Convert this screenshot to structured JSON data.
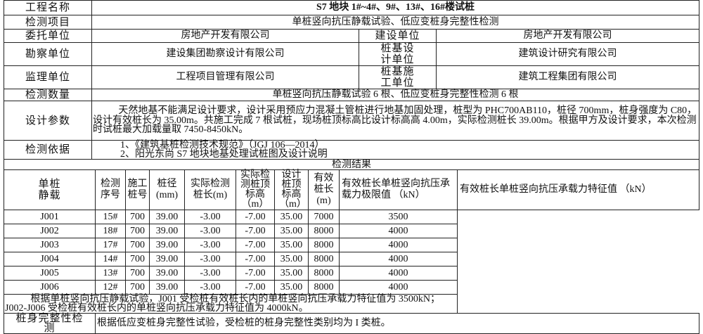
{
  "project": {
    "label": "工程名称",
    "value": "S7 地块 1#~4#、9#、13#、16#楼试桩"
  },
  "test_item": {
    "label": "检测项目",
    "value": "单桩竖向抗压静载试验、低应变桩身完整性检测"
  },
  "client": {
    "label": "委托单位",
    "value": "房地产开发有限公司",
    "label2": "建设单位",
    "value2": "房地产开发有限公司"
  },
  "survey": {
    "label": "勘察单位",
    "value": "建设集团勘察设计有限公司",
    "label2": "桩基设计单位",
    "value2": "建筑设计研究有限公司"
  },
  "supervision": {
    "label": "监理单位",
    "value": "工程项目管理有限公司",
    "label2": "桩基施工单位",
    "value2": "建筑工程集团有限公司"
  },
  "quantity": {
    "label": "检测数量",
    "value": "单桩竖向抗压静载试验 6 根、低应变桩身完整性检测 6 根"
  },
  "design": {
    "label": "设计参数",
    "value": "天然地基不能满足设计要求，设计采用预应力混凝土管桩进行地基加固处理，桩型为 PHC700AB110，桩径 700mm，桩身强度为 C80，设计有效桩长为 35.00m。共施工完成 7 根试桩，现场桩顶标高比设计标高高 4.00m，实际检测桩长 39.00m。根据甲方及设计要求，本次检测时试桩最大加载量取 7450-8450kN。"
  },
  "basis": {
    "label": "检测依据",
    "items": [
      "1、《建筑基桩检测技术规范》（JGJ 106—2014）",
      "2、阳光东尚 S7 地块地基处理试桩图及设计说明"
    ]
  },
  "results": {
    "title": "检测结果",
    "static_label": "单桩静载",
    "headers": [
      "检测序号",
      "施工桩号",
      "桩径(mm)",
      "实际检测桩长(m)",
      "实际检测桩顶标高（m）",
      "设计桩顶标高（m）",
      "有效桩长(m)",
      "有效桩长单桩竖向抗压承载力极限值 （kN）",
      "有效桩长单桩竖向抗压承载力特征值 （kN）"
    ],
    "rows": [
      [
        "J001",
        "15#",
        "700",
        "39.00",
        "-3.00",
        "-7.00",
        "35.00",
        "7000",
        "3500"
      ],
      [
        "J002",
        "18#",
        "700",
        "39.00",
        "-3.00",
        "-7.00",
        "35.00",
        "8000",
        "4000"
      ],
      [
        "J003",
        "17#",
        "700",
        "39.00",
        "-3.00",
        "-7.00",
        "35.00",
        "8000",
        "4000"
      ],
      [
        "J004",
        "14#",
        "700",
        "39.00",
        "-3.00",
        "-7.00",
        "35.00",
        "8000",
        "4000"
      ],
      [
        "J005",
        "13#",
        "700",
        "39.00",
        "-3.00",
        "-7.00",
        "35.00",
        "8000",
        "4000"
      ],
      [
        "J006",
        "12#",
        "700",
        "39.00",
        "-3.00",
        "-7.00",
        "35.00",
        "8000",
        "4000"
      ]
    ],
    "conclusion": "根据单桩竖向抗压静载试验，J001 受检桩有效桩长内的单桩竖向抗压承载力特征值为 3500kN；J002-J006 受检桩有效桩长内的单桩竖向抗压承载力特征值为 4000kN。"
  },
  "integrity": {
    "label": "桩身完整性检测",
    "value": "根据低应变桩身完整性试验，受检桩的桩身完整性类别均为 I 类桩。"
  }
}
